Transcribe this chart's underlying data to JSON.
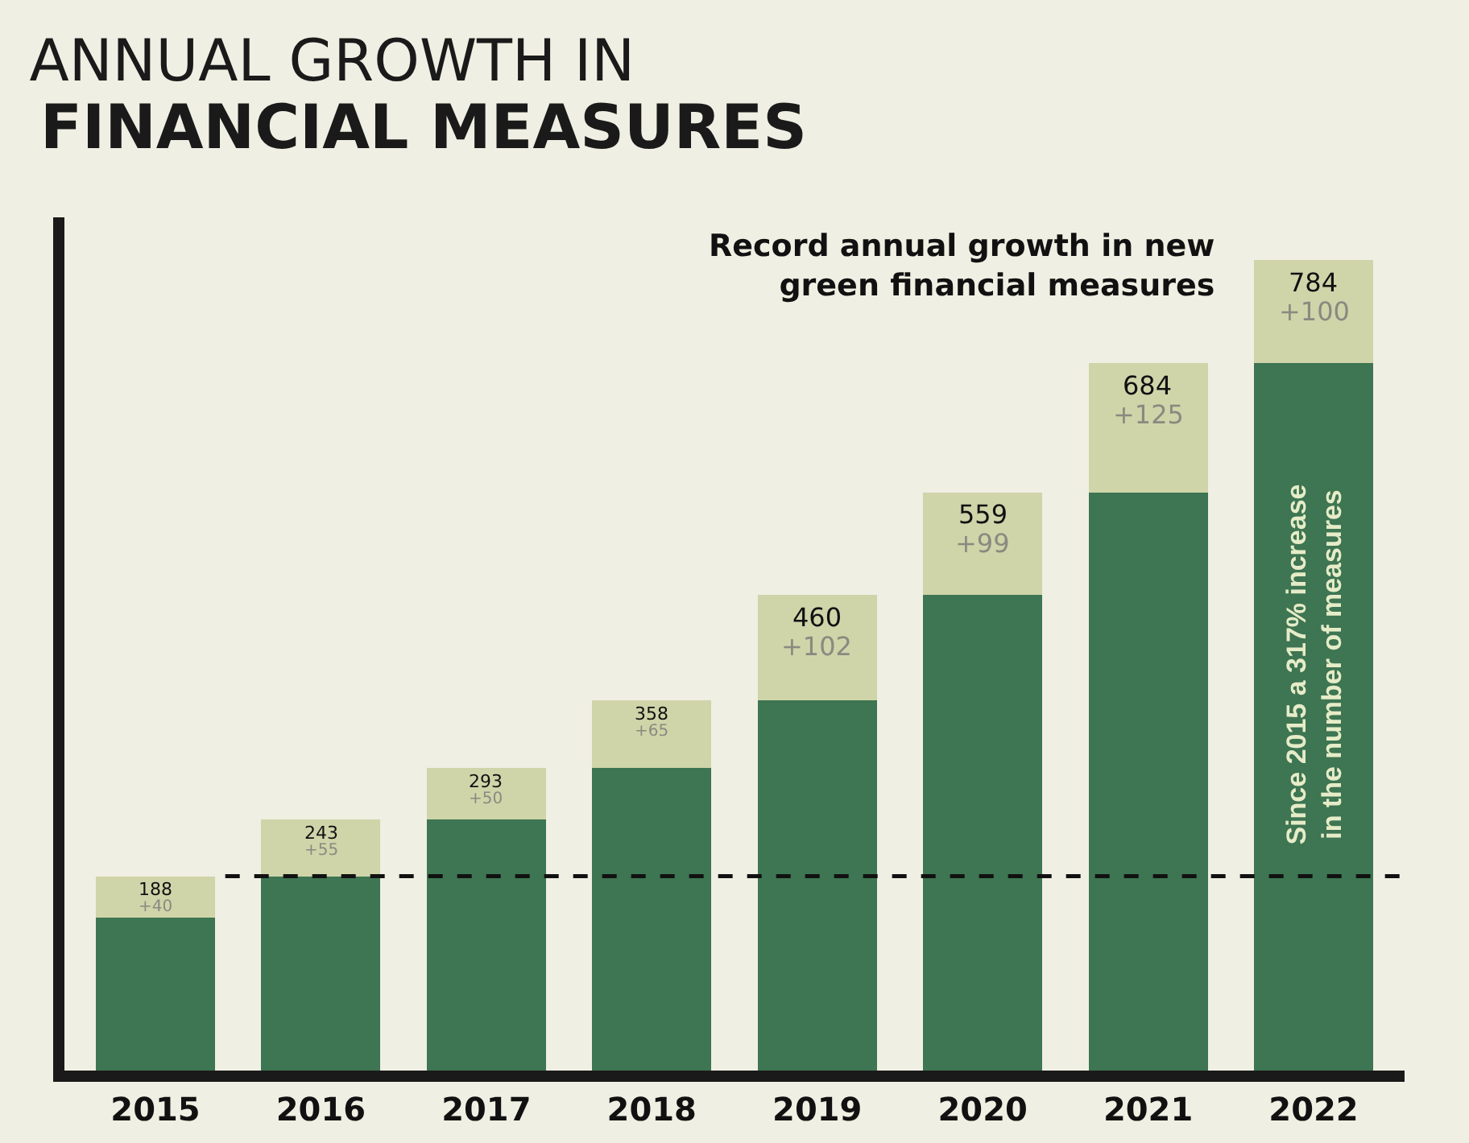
{
  "chart_data": {
    "type": "bar",
    "title": "ANNUAL GROWTH IN",
    "subtitle": "FINANCIAL MEASURES",
    "categories": [
      "2015",
      "2016",
      "2017",
      "2018",
      "2019",
      "2020",
      "2021",
      "2022"
    ],
    "stacked": true,
    "series": [
      {
        "color": "#3e7552",
        "values": [
          148,
          188,
          243,
          293,
          358,
          460,
          559,
          684
        ]
      },
      {
        "color": "#cfd5a9",
        "values": [
          40,
          55,
          50,
          65,
          102,
          99,
          125,
          100
        ],
        "value_labels": [
          "+40",
          "+55",
          "+50",
          "+65",
          "+102",
          "+99",
          "+125",
          "+100"
        ]
      }
    ],
    "totals": [
      "188",
      "243",
      "293",
      "358",
      "460",
      "559",
      "684",
      "784"
    ],
    "ref_lines": [
      {
        "axis": "y",
        "value": 188,
        "line_style": "dashed",
        "color": "#111111"
      }
    ],
    "annotations": [
      "Record annual growth in new green financial measures",
      "Since 2015 a 317% increase in the number of measures"
    ]
  }
}
